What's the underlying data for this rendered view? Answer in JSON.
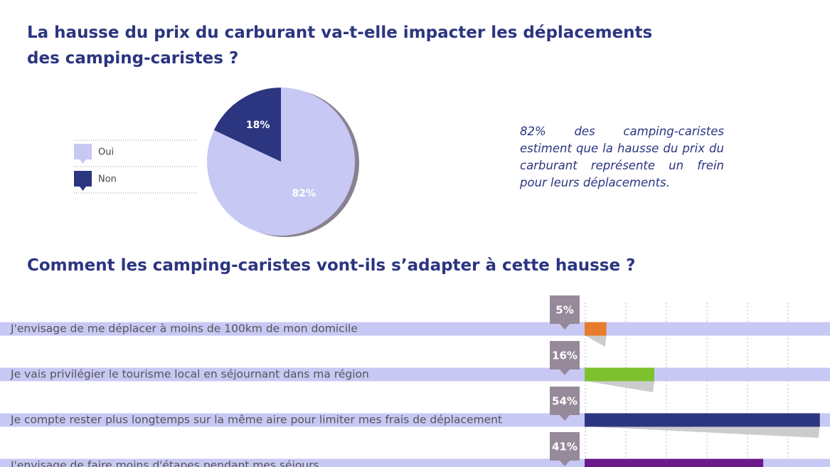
{
  "chart_data": [
    {
      "type": "pie",
      "title": "La hausse du prix du carburant va-t-elle impacter les déplacements des camping-caristes ?",
      "categories": [
        "Oui",
        "Non"
      ],
      "values": [
        82,
        18
      ],
      "value_labels": [
        "82%",
        "18%"
      ],
      "colors": [
        "#c8c8f5",
        "#2b3580"
      ],
      "annotation": "82% des camping-caristes estiment que la hausse du prix du carburant représente un frein pour leurs déplacements."
    },
    {
      "type": "bar",
      "title": "Comment les camping-caristes vont-ils s’adapter à cette hausse ?",
      "categories": [
        "J'envisage de me déplacer à moins de 100km de mon domicile",
        "Je vais privilégier le tourisme local en séjournant dans ma région",
        "Je compte rester plus longtemps sur la même aire pour limiter mes frais de déplacement",
        "J'envisage de faire moins d'étapes pendant mes séjours"
      ],
      "values": [
        5,
        16,
        54,
        41
      ],
      "value_labels": [
        "5%",
        "16%",
        "54%",
        "41%"
      ],
      "colors": [
        "#e87b2c",
        "#7dc22e",
        "#2b3580",
        "#6a1a8a"
      ],
      "xlim": [
        0,
        56
      ]
    }
  ]
}
